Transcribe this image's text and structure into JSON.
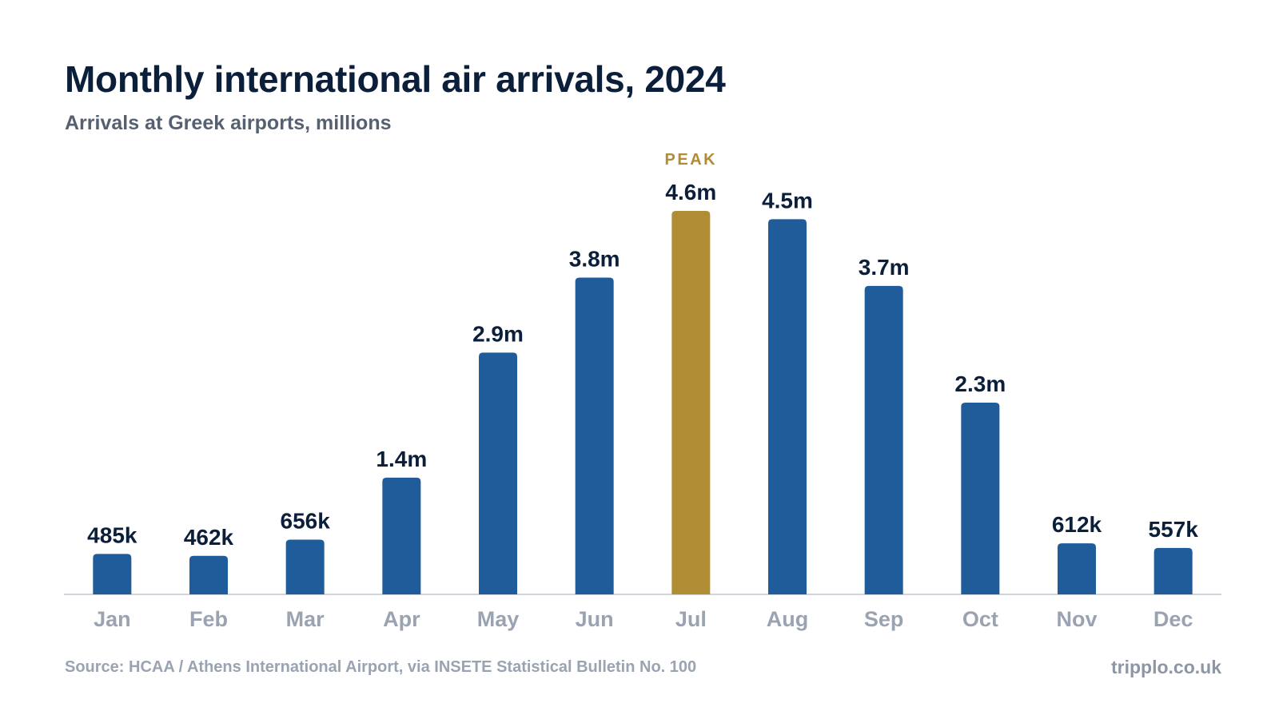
{
  "title": "Monthly international air arrivals, 2024",
  "subtitle": "Arrivals at Greek airports, millions",
  "footer": {
    "source": "Source: HCAA / Athens International Airport, via INSETE Statistical Bulletin No. 100",
    "brand": "tripplo.co.uk"
  },
  "colors": {
    "bar": "#1f5c99",
    "highlight": "#b08d35",
    "value_label": "#0b1f3a",
    "tick_label": "#9aa3b2",
    "axis": "#cfd4dc"
  },
  "chart_data": {
    "type": "bar",
    "categories": [
      "Jan",
      "Feb",
      "Mar",
      "Apr",
      "May",
      "Jun",
      "Jul",
      "Aug",
      "Sep",
      "Oct",
      "Nov",
      "Dec"
    ],
    "values": [
      0.485,
      0.462,
      0.656,
      1.4,
      2.9,
      3.8,
      4.6,
      4.5,
      3.7,
      2.3,
      0.612,
      0.557
    ],
    "value_labels": [
      "485k",
      "462k",
      "656k",
      "1.4m",
      "2.9m",
      "3.8m",
      "4.6m",
      "4.5m",
      "3.7m",
      "2.3m",
      "612k",
      "557k"
    ],
    "highlight_index": 6,
    "annotation": "PEAK",
    "ylim": [
      0,
      4.6
    ],
    "grid": false,
    "xlabel": "",
    "ylabel": ""
  }
}
